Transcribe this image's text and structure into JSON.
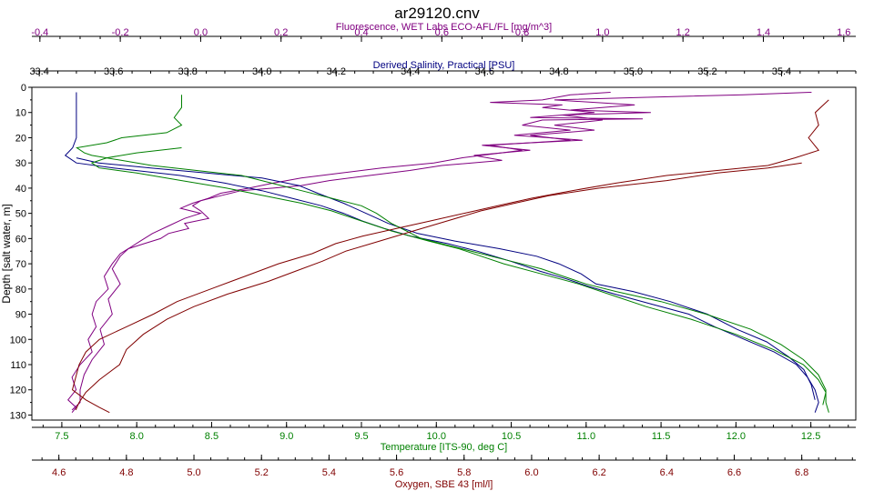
{
  "chart_data": {
    "type": "line",
    "title": "ar29120.cnv",
    "ylabel": "Depth [salt water, m]",
    "ylim": [
      0,
      132
    ],
    "yticks": [
      0,
      10,
      20,
      30,
      40,
      50,
      60,
      70,
      80,
      90,
      100,
      110,
      120,
      130
    ],
    "grid": false,
    "legend": "none",
    "axes": [
      {
        "id": "fluor",
        "position": "top-outer",
        "label": "Fluorescence, WET Labs ECO-AFL/FL [mg/m^3]",
        "range": [
          -0.42,
          1.63
        ],
        "ticks": [
          -0.4,
          -0.2,
          0.0,
          0.2,
          0.4,
          0.6,
          0.8,
          1.0,
          1.2,
          1.4,
          1.6
        ],
        "tick_labels": [
          "-0.4",
          "-0.2",
          "0.0",
          "0.2",
          "0.4",
          "0.6",
          "0.8",
          "1.0",
          "1.2",
          "1.4",
          "1.6"
        ],
        "color": "#800080"
      },
      {
        "id": "sal",
        "position": "top-inner",
        "label": "Derived Salinity, Practical [PSU]",
        "range": [
          33.38,
          35.6
        ],
        "ticks": [
          33.4,
          33.6,
          33.8,
          34.0,
          34.2,
          34.4,
          34.6,
          34.8,
          35.0,
          35.2,
          35.4
        ],
        "tick_labels": [
          "33.4",
          "33.6",
          "33.8",
          "34.0",
          "34.2",
          "34.4",
          "34.6",
          "34.8",
          "35.0",
          "35.2",
          "35.4"
        ],
        "color": "#000080"
      },
      {
        "id": "temp",
        "position": "bottom-inner",
        "label": "Temperature [ITS-90, deg C]",
        "range": [
          7.3,
          12.8
        ],
        "ticks": [
          7.5,
          8.0,
          8.5,
          9.0,
          9.5,
          10.0,
          10.5,
          11.0,
          11.5,
          12.0,
          12.5
        ],
        "tick_labels": [
          "7.5",
          "8.0",
          "8.5",
          "9.0",
          "9.5",
          "10.0",
          "10.5",
          "11.0",
          "11.5",
          "12.0",
          "12.5"
        ],
        "color": "#008000"
      },
      {
        "id": "oxy",
        "position": "bottom-outer",
        "label": "Oxygen, SBE 43 [ml/l]",
        "range": [
          4.52,
          6.96
        ],
        "ticks": [
          4.6,
          4.8,
          5.0,
          5.2,
          5.4,
          5.6,
          5.8,
          6.0,
          6.2,
          6.4,
          6.6,
          6.8
        ],
        "tick_labels": [
          "4.6",
          "4.8",
          "5.0",
          "5.2",
          "5.4",
          "5.6",
          "5.8",
          "6.0",
          "6.2",
          "6.4",
          "6.6",
          "6.8"
        ],
        "color": "#800000"
      }
    ],
    "series": [
      {
        "axis": "fluor",
        "color": "#800080",
        "points": [
          [
            1.02,
            2
          ],
          [
            0.92,
            3
          ],
          [
            0.85,
            5
          ],
          [
            0.72,
            6
          ],
          [
            0.9,
            7
          ],
          [
            0.85,
            8
          ],
          [
            0.98,
            10
          ],
          [
            0.82,
            12
          ],
          [
            1.1,
            12.5
          ],
          [
            0.85,
            13
          ],
          [
            0.8,
            15
          ],
          [
            0.92,
            17
          ],
          [
            0.78,
            19
          ],
          [
            0.95,
            21
          ],
          [
            0.7,
            23
          ],
          [
            0.82,
            25
          ],
          [
            0.68,
            27
          ],
          [
            0.75,
            29
          ],
          [
            0.6,
            31
          ],
          [
            0.52,
            33
          ],
          [
            0.42,
            35
          ],
          [
            0.32,
            37
          ],
          [
            0.25,
            39
          ],
          [
            0.18,
            40
          ],
          [
            0.1,
            41
          ],
          [
            0.05,
            43
          ],
          [
            0.0,
            45
          ],
          [
            -0.02,
            47
          ],
          [
            0.0,
            49
          ],
          [
            0.02,
            52
          ],
          [
            -0.04,
            54
          ],
          [
            -0.03,
            56
          ],
          [
            -0.08,
            58
          ],
          [
            -0.1,
            60
          ],
          [
            -0.14,
            62
          ],
          [
            -0.18,
            64
          ],
          [
            -0.2,
            66
          ],
          [
            -0.22,
            70
          ],
          [
            -0.24,
            75
          ],
          [
            -0.23,
            80
          ],
          [
            -0.26,
            85
          ],
          [
            -0.27,
            90
          ],
          [
            -0.26,
            95
          ],
          [
            -0.28,
            100
          ],
          [
            -0.27,
            105
          ],
          [
            -0.3,
            110
          ],
          [
            -0.32,
            115
          ],
          [
            -0.31,
            120
          ],
          [
            -0.33,
            124
          ],
          [
            -0.31,
            127
          ],
          [
            -0.32,
            129
          ]
        ]
      },
      {
        "axis": "fluor",
        "color": "#800080",
        "points": [
          [
            1.52,
            2
          ],
          [
            1.35,
            3
          ],
          [
            1.1,
            4
          ],
          [
            0.88,
            5
          ],
          [
            1.08,
            7
          ],
          [
            0.92,
            9
          ],
          [
            1.12,
            10
          ],
          [
            0.9,
            11
          ],
          [
            1.0,
            13
          ],
          [
            0.88,
            15
          ],
          [
            0.98,
            17
          ],
          [
            0.82,
            19
          ],
          [
            0.92,
            21
          ],
          [
            0.72,
            23
          ],
          [
            0.8,
            25
          ],
          [
            0.65,
            28
          ],
          [
            0.58,
            30
          ],
          [
            0.45,
            32
          ],
          [
            0.35,
            34
          ],
          [
            0.25,
            36
          ],
          [
            0.18,
            38
          ],
          [
            0.12,
            40
          ],
          [
            0.05,
            42
          ],
          [
            0.02,
            44
          ],
          [
            -0.02,
            46
          ],
          [
            -0.05,
            48
          ],
          [
            0.0,
            50
          ],
          [
            -0.04,
            52
          ],
          [
            -0.08,
            55
          ],
          [
            -0.12,
            58
          ],
          [
            -0.15,
            61
          ],
          [
            -0.18,
            64
          ],
          [
            -0.2,
            67
          ],
          [
            -0.22,
            72
          ],
          [
            -0.2,
            78
          ],
          [
            -0.23,
            84
          ],
          [
            -0.22,
            90
          ],
          [
            -0.25,
            96
          ],
          [
            -0.24,
            102
          ],
          [
            -0.27,
            108
          ],
          [
            -0.29,
            114
          ],
          [
            -0.3,
            120
          ],
          [
            -0.3,
            125
          ],
          [
            -0.32,
            128
          ]
        ]
      },
      {
        "axis": "sal",
        "color": "#000080",
        "points": [
          [
            33.5,
            2
          ],
          [
            33.5,
            10
          ],
          [
            33.5,
            20
          ],
          [
            33.49,
            24
          ],
          [
            33.47,
            27
          ],
          [
            33.5,
            30
          ],
          [
            33.6,
            32
          ],
          [
            33.78,
            35
          ],
          [
            33.9,
            38
          ],
          [
            34.0,
            41
          ],
          [
            34.08,
            44
          ],
          [
            34.16,
            47
          ],
          [
            34.22,
            50
          ],
          [
            34.27,
            53
          ],
          [
            34.33,
            56
          ],
          [
            34.4,
            59
          ],
          [
            34.5,
            62
          ],
          [
            34.58,
            65
          ],
          [
            34.67,
            69
          ],
          [
            34.75,
            73
          ],
          [
            34.82,
            76
          ],
          [
            34.88,
            79
          ],
          [
            34.95,
            82
          ],
          [
            35.05,
            86
          ],
          [
            35.15,
            90
          ],
          [
            35.22,
            95
          ],
          [
            35.3,
            100
          ],
          [
            35.38,
            105
          ],
          [
            35.44,
            110
          ],
          [
            35.47,
            115
          ],
          [
            35.49,
            120
          ],
          [
            35.5,
            125
          ],
          [
            35.49,
            129
          ]
        ]
      },
      {
        "axis": "sal",
        "color": "#000080",
        "points": [
          [
            33.5,
            28
          ],
          [
            33.56,
            30
          ],
          [
            33.7,
            32
          ],
          [
            33.85,
            34
          ],
          [
            34.0,
            36
          ],
          [
            34.1,
            39
          ],
          [
            34.15,
            42
          ],
          [
            34.22,
            46
          ],
          [
            34.28,
            50
          ],
          [
            34.34,
            54
          ],
          [
            34.42,
            58
          ],
          [
            34.52,
            61
          ],
          [
            34.64,
            64
          ],
          [
            34.74,
            67
          ],
          [
            34.8,
            70
          ],
          [
            34.86,
            74
          ],
          [
            34.9,
            78
          ],
          [
            35.0,
            81
          ],
          [
            35.1,
            85
          ],
          [
            35.2,
            90
          ],
          [
            35.28,
            96
          ],
          [
            35.36,
            101
          ],
          [
            35.42,
            107
          ],
          [
            35.46,
            112
          ],
          [
            35.48,
            118
          ],
          [
            35.49,
            124
          ]
        ]
      },
      {
        "axis": "temp",
        "color": "#008000",
        "points": [
          [
            8.3,
            3
          ],
          [
            8.3,
            8
          ],
          [
            8.25,
            12
          ],
          [
            8.3,
            15
          ],
          [
            8.2,
            18
          ],
          [
            7.9,
            20
          ],
          [
            7.8,
            22
          ],
          [
            7.6,
            24
          ],
          [
            7.65,
            26
          ],
          [
            7.7,
            27
          ],
          [
            7.9,
            29
          ],
          [
            8.1,
            31
          ],
          [
            8.4,
            33
          ],
          [
            8.7,
            35
          ],
          [
            8.9,
            38
          ],
          [
            9.1,
            41
          ],
          [
            9.3,
            44
          ],
          [
            9.5,
            47
          ],
          [
            9.6,
            50
          ],
          [
            9.7,
            54
          ],
          [
            9.8,
            57
          ],
          [
            9.9,
            60
          ],
          [
            10.1,
            63
          ],
          [
            10.3,
            66
          ],
          [
            10.5,
            69
          ],
          [
            10.7,
            72
          ],
          [
            10.85,
            75
          ],
          [
            11.0,
            78
          ],
          [
            11.2,
            81
          ],
          [
            11.5,
            85
          ],
          [
            11.8,
            90
          ],
          [
            12.1,
            96
          ],
          [
            12.3,
            102
          ],
          [
            12.45,
            108
          ],
          [
            12.55,
            114
          ],
          [
            12.6,
            120
          ],
          [
            12.6,
            125
          ],
          [
            12.62,
            129
          ]
        ]
      },
      {
        "axis": "temp",
        "color": "#008000",
        "points": [
          [
            8.3,
            24
          ],
          [
            8.0,
            26
          ],
          [
            7.8,
            28
          ],
          [
            7.7,
            30
          ],
          [
            7.75,
            32
          ],
          [
            8.0,
            34
          ],
          [
            8.3,
            37
          ],
          [
            8.6,
            40
          ],
          [
            8.85,
            43
          ],
          [
            9.1,
            46
          ],
          [
            9.3,
            49
          ],
          [
            9.5,
            53
          ],
          [
            9.7,
            57
          ],
          [
            9.95,
            61
          ],
          [
            10.15,
            64
          ],
          [
            10.3,
            67
          ],
          [
            10.45,
            70
          ],
          [
            10.7,
            74
          ],
          [
            10.95,
            78
          ],
          [
            11.2,
            83
          ],
          [
            11.4,
            87
          ],
          [
            11.7,
            92
          ],
          [
            12.0,
            98
          ],
          [
            12.25,
            104
          ],
          [
            12.45,
            110
          ],
          [
            12.55,
            116
          ],
          [
            12.6,
            121
          ],
          [
            12.58,
            126
          ]
        ]
      },
      {
        "axis": "oxy",
        "color": "#800000",
        "points": [
          [
            6.88,
            5
          ],
          [
            6.84,
            10
          ],
          [
            6.85,
            15
          ],
          [
            6.82,
            20
          ],
          [
            6.85,
            25
          ],
          [
            6.78,
            28
          ],
          [
            6.7,
            31
          ],
          [
            6.55,
            33
          ],
          [
            6.4,
            35
          ],
          [
            6.25,
            38
          ],
          [
            6.12,
            41
          ],
          [
            6.0,
            44
          ],
          [
            5.9,
            47
          ],
          [
            5.8,
            50
          ],
          [
            5.7,
            53
          ],
          [
            5.6,
            56
          ],
          [
            5.5,
            59
          ],
          [
            5.42,
            62
          ],
          [
            5.35,
            66
          ],
          [
            5.25,
            70
          ],
          [
            5.15,
            75
          ],
          [
            5.05,
            80
          ],
          [
            4.95,
            85
          ],
          [
            4.88,
            90
          ],
          [
            4.8,
            95
          ],
          [
            4.72,
            100
          ],
          [
            4.68,
            105
          ],
          [
            4.66,
            110
          ],
          [
            4.65,
            115
          ],
          [
            4.64,
            120
          ],
          [
            4.68,
            124
          ],
          [
            4.72,
            127
          ],
          [
            4.75,
            129
          ]
        ]
      },
      {
        "axis": "oxy",
        "color": "#800000",
        "points": [
          [
            6.8,
            30
          ],
          [
            6.7,
            32
          ],
          [
            6.55,
            34
          ],
          [
            6.4,
            37
          ],
          [
            6.2,
            40
          ],
          [
            6.05,
            43
          ],
          [
            5.95,
            46
          ],
          [
            5.85,
            49
          ],
          [
            5.75,
            53
          ],
          [
            5.65,
            57
          ],
          [
            5.55,
            61
          ],
          [
            5.45,
            65
          ],
          [
            5.38,
            69
          ],
          [
            5.3,
            73
          ],
          [
            5.22,
            77
          ],
          [
            5.1,
            82
          ],
          [
            5.0,
            87
          ],
          [
            4.92,
            92
          ],
          [
            4.85,
            98
          ],
          [
            4.8,
            104
          ],
          [
            4.78,
            110
          ],
          [
            4.72,
            116
          ],
          [
            4.68,
            121
          ],
          [
            4.66,
            125
          ],
          [
            4.65,
            128
          ]
        ]
      }
    ]
  }
}
